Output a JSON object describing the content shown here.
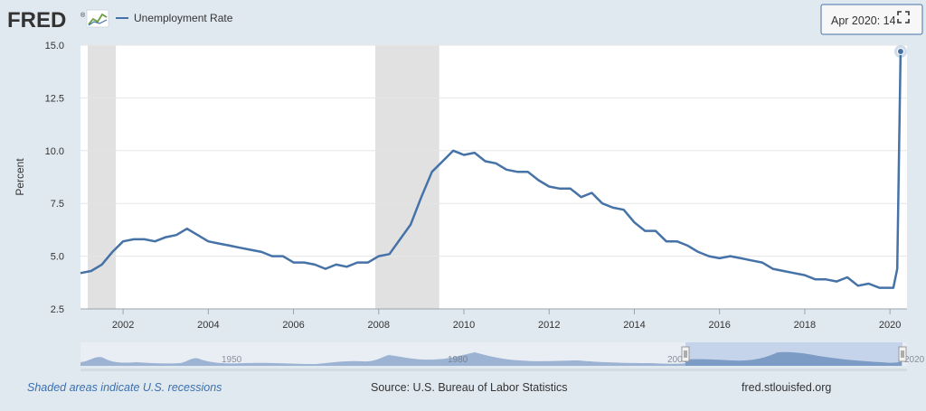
{
  "brand": {
    "logo_text": "FRED",
    "logo_mark": "®"
  },
  "tooltip": {
    "text": "Apr 2020: 14.7"
  },
  "footer": {
    "recession_note": "Shaded areas indicate U.S. recessions",
    "source": "Source: U.S. Bureau of Labor Statistics",
    "site": "fred.stlouisfed.org"
  },
  "navigator": {
    "labels": [
      "1950",
      "1980",
      "2000",
      "2020"
    ]
  },
  "colors": {
    "line": "#4572a7",
    "recession": "#e1e1e1",
    "plot_bg": "#ffffff",
    "page_bg": "#e1e9f0",
    "logo": "#333333",
    "nav_fill": "#8fa8cc",
    "nav_selected": "#b7c9e6"
  },
  "chart_data": {
    "type": "line",
    "title": "",
    "xlabel": "",
    "ylabel": "Percent",
    "xlim": [
      2001.0,
      2020.4
    ],
    "ylim": [
      2.5,
      15.0
    ],
    "y_ticks": [
      "2.5",
      "5.0",
      "7.5",
      "10.0",
      "12.5",
      "15.0"
    ],
    "x_ticks": [
      "2002",
      "2004",
      "2006",
      "2008",
      "2010",
      "2012",
      "2014",
      "2016",
      "2018",
      "2020"
    ],
    "grid": true,
    "legend": "top-left",
    "recessions": [
      {
        "start": 2001.17,
        "end": 2001.83
      },
      {
        "start": 2007.92,
        "end": 2009.42
      }
    ],
    "series": [
      {
        "name": "Unemployment Rate",
        "x": [
          2001.0,
          2001.25,
          2001.5,
          2001.75,
          2002.0,
          2002.25,
          2002.5,
          2002.75,
          2003.0,
          2003.25,
          2003.5,
          2003.75,
          2004.0,
          2004.25,
          2004.5,
          2004.75,
          2005.0,
          2005.25,
          2005.5,
          2005.75,
          2006.0,
          2006.25,
          2006.5,
          2006.75,
          2007.0,
          2007.25,
          2007.5,
          2007.75,
          2008.0,
          2008.25,
          2008.5,
          2008.75,
          2009.0,
          2009.25,
          2009.5,
          2009.75,
          2010.0,
          2010.25,
          2010.5,
          2010.75,
          2011.0,
          2011.25,
          2011.5,
          2011.75,
          2012.0,
          2012.25,
          2012.5,
          2012.75,
          2013.0,
          2013.25,
          2013.5,
          2013.75,
          2014.0,
          2014.25,
          2014.5,
          2014.75,
          2015.0,
          2015.25,
          2015.5,
          2015.75,
          2016.0,
          2016.25,
          2016.5,
          2016.75,
          2017.0,
          2017.25,
          2017.5,
          2017.75,
          2018.0,
          2018.25,
          2018.5,
          2018.75,
          2019.0,
          2019.25,
          2019.5,
          2019.75,
          2020.0,
          2020.08,
          2020.17,
          2020.25
        ],
        "y": [
          4.2,
          4.3,
          4.6,
          5.2,
          5.7,
          5.8,
          5.8,
          5.7,
          5.9,
          6.0,
          6.3,
          6.0,
          5.7,
          5.6,
          5.5,
          5.4,
          5.3,
          5.2,
          5.0,
          5.0,
          4.7,
          4.7,
          4.6,
          4.4,
          4.6,
          4.5,
          4.7,
          4.7,
          5.0,
          5.1,
          5.8,
          6.5,
          7.8,
          9.0,
          9.5,
          10.0,
          9.8,
          9.9,
          9.5,
          9.4,
          9.1,
          9.0,
          9.0,
          8.6,
          8.3,
          8.2,
          8.2,
          7.8,
          8.0,
          7.5,
          7.3,
          7.2,
          6.6,
          6.2,
          6.2,
          5.7,
          5.7,
          5.5,
          5.2,
          5.0,
          4.9,
          5.0,
          4.9,
          4.8,
          4.7,
          4.4,
          4.3,
          4.2,
          4.1,
          3.9,
          3.9,
          3.8,
          4.0,
          3.6,
          3.7,
          3.5,
          3.5,
          3.5,
          4.4,
          14.7
        ]
      }
    ]
  }
}
